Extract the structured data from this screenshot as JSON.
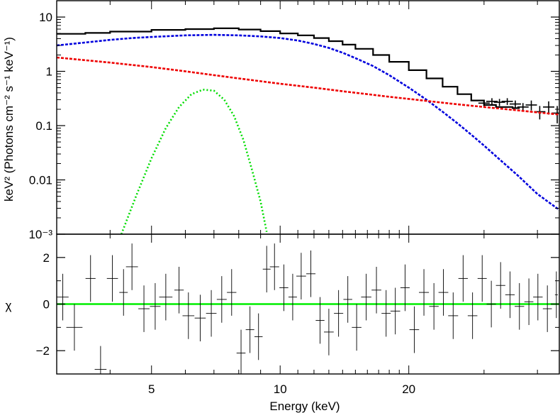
{
  "chart_data": [
    {
      "type": "line",
      "panel": "spectrum",
      "xscale": "log",
      "yscale": "log",
      "xlim": [
        3.0,
        45.0
      ],
      "ylim": [
        0.001,
        20
      ],
      "ylabel": "keV² (Photons cm⁻² s⁻¹ keV⁻¹)",
      "yticks": [
        {
          "value": 10,
          "label": "10"
        },
        {
          "value": 1,
          "label": "1"
        },
        {
          "value": 0.1,
          "label": "0.1"
        },
        {
          "value": 0.01,
          "label": "0.01"
        },
        {
          "value": 0.001,
          "label": "10⁻³"
        }
      ],
      "series": [
        {
          "color": "#000000",
          "style": "step",
          "x": [
            3.0,
            3.5,
            4.0,
            5.0,
            6.0,
            7.0,
            8.0,
            9.0,
            10.0,
            11.0,
            12.0,
            13.0,
            14.0,
            15.0,
            16.5,
            18.0,
            20.0,
            22.0,
            24.0,
            26.0,
            28.0,
            30.0,
            32.0,
            35.0
          ],
          "y": [
            4.9,
            5.1,
            5.4,
            5.8,
            6.0,
            6.2,
            5.9,
            5.5,
            5.0,
            4.6,
            4.1,
            3.6,
            3.1,
            2.6,
            2.0,
            1.5,
            1.05,
            0.74,
            0.52,
            0.38,
            0.29,
            0.24,
            0.22,
            0.21
          ]
        },
        {
          "color": "#000000",
          "style": "errorbars",
          "x": [
            30.0,
            31.3,
            32.6,
            34.0,
            35.5,
            37.0,
            38.7,
            40.5,
            42.5,
            44.5
          ],
          "y": [
            0.26,
            0.28,
            0.27,
            0.28,
            0.25,
            0.22,
            0.24,
            0.18,
            0.22,
            0.17
          ],
          "yerr": [
            0.04,
            0.04,
            0.04,
            0.04,
            0.04,
            0.04,
            0.05,
            0.05,
            0.06,
            0.06
          ]
        },
        {
          "color": "#0000dd",
          "style": "dashed",
          "x": [
            3.0,
            3.5,
            4.0,
            4.5,
            5.0,
            6.0,
            7.0,
            8.0,
            9.0,
            10.0,
            11.0,
            12.0,
            13.0,
            14.0,
            15.0,
            16.5,
            18.0,
            20.0,
            22.0,
            24.0,
            26.0,
            28.0,
            30.0,
            33.0,
            36.0,
            40.0,
            45.0
          ],
          "y": [
            3.0,
            3.4,
            3.8,
            4.1,
            4.3,
            4.6,
            4.7,
            4.6,
            4.4,
            4.1,
            3.7,
            3.2,
            2.7,
            2.2,
            1.75,
            1.25,
            0.85,
            0.5,
            0.3,
            0.18,
            0.11,
            0.068,
            0.043,
            0.022,
            0.012,
            0.0055,
            0.0028
          ]
        },
        {
          "color": "#ee0000",
          "style": "dashed",
          "x": [
            3.0,
            4.0,
            5.0,
            6.0,
            7.0,
            8.0,
            10.0,
            12.0,
            14.0,
            16.0,
            18.0,
            20.0,
            25.0,
            30.0,
            35.0,
            40.0,
            45.0
          ],
          "y": [
            1.8,
            1.45,
            1.2,
            1.0,
            0.85,
            0.74,
            0.59,
            0.5,
            0.43,
            0.38,
            0.34,
            0.31,
            0.255,
            0.22,
            0.195,
            0.175,
            0.16
          ]
        },
        {
          "color": "#00dd00",
          "style": "dotted",
          "x": [
            4.25,
            4.6,
            5.0,
            5.4,
            5.8,
            6.2,
            6.6,
            7.0,
            7.4,
            7.8,
            8.2,
            8.6,
            9.0,
            9.3
          ],
          "y": [
            0.001,
            0.005,
            0.025,
            0.09,
            0.22,
            0.38,
            0.46,
            0.44,
            0.3,
            0.15,
            0.055,
            0.015,
            0.004,
            0.0011
          ]
        }
      ]
    },
    {
      "type": "scatter",
      "panel": "residuals",
      "xscale": "log",
      "xlim": [
        3.0,
        45.0
      ],
      "ylim": [
        -3.0,
        3.0
      ],
      "ylabel": "χ",
      "xlabel": "Energy (keV)",
      "yticks": [
        {
          "value": 2,
          "label": "2"
        },
        {
          "value": 0,
          "label": "0"
        },
        {
          "value": -2,
          "label": "−2"
        }
      ],
      "xticks": [
        {
          "value": 5,
          "label": "5"
        },
        {
          "value": 10,
          "label": "10"
        },
        {
          "value": 20,
          "label": "20"
        }
      ],
      "zero_line_color": "#00ee00",
      "series": [
        {
          "color": "#000000",
          "x": [
            3.1,
            3.3,
            3.6,
            3.8,
            4.05,
            4.3,
            4.5,
            4.8,
            5.1,
            5.4,
            5.8,
            6.1,
            6.5,
            6.9,
            7.3,
            7.7,
            8.1,
            8.5,
            8.9,
            9.3,
            9.7,
            10.2,
            10.7,
            11.2,
            11.8,
            12.4,
            13.0,
            13.7,
            14.4,
            15.1,
            15.9,
            16.8,
            17.7,
            18.6,
            19.6,
            20.6,
            21.7,
            22.9,
            24.1,
            25.4,
            26.8,
            28.2,
            29.7,
            31.2,
            32.8,
            34.5,
            36.3,
            38.2,
            40.1,
            42.2,
            44.3
          ],
          "y": [
            0.3,
            -1.0,
            1.1,
            -2.8,
            1.1,
            0.5,
            1.6,
            -0.2,
            -0.1,
            0.3,
            0.6,
            -0.5,
            -0.6,
            -0.4,
            0.2,
            0.5,
            -2.1,
            -1.1,
            -1.4,
            1.5,
            1.6,
            0.7,
            0.3,
            1.2,
            1.3,
            -0.7,
            -1.2,
            -0.4,
            0.2,
            -1.0,
            0.3,
            0.6,
            -0.4,
            -0.3,
            0.7,
            -1.1,
            0.5,
            -0.1,
            0.5,
            -0.5,
            1.1,
            -0.5,
            1.1,
            0.0,
            0.8,
            0.4,
            -0.1,
            0.1,
            0.3,
            -0.2,
            0.4
          ],
          "yerr": [
            1.0,
            1.0,
            1.0,
            1.0,
            1.0,
            1.0,
            1.0,
            1.0,
            1.0,
            1.0,
            1.0,
            1.0,
            1.0,
            1.0,
            1.0,
            1.0,
            1.0,
            1.0,
            1.0,
            1.0,
            1.0,
            1.0,
            1.0,
            1.0,
            1.0,
            1.0,
            1.0,
            1.0,
            1.0,
            1.0,
            1.0,
            1.0,
            1.0,
            1.0,
            1.0,
            1.0,
            1.0,
            1.0,
            1.0,
            1.0,
            1.0,
            1.0,
            1.0,
            1.0,
            1.0,
            1.0,
            1.0,
            1.0,
            1.0,
            1.0,
            1.0
          ]
        }
      ]
    }
  ]
}
